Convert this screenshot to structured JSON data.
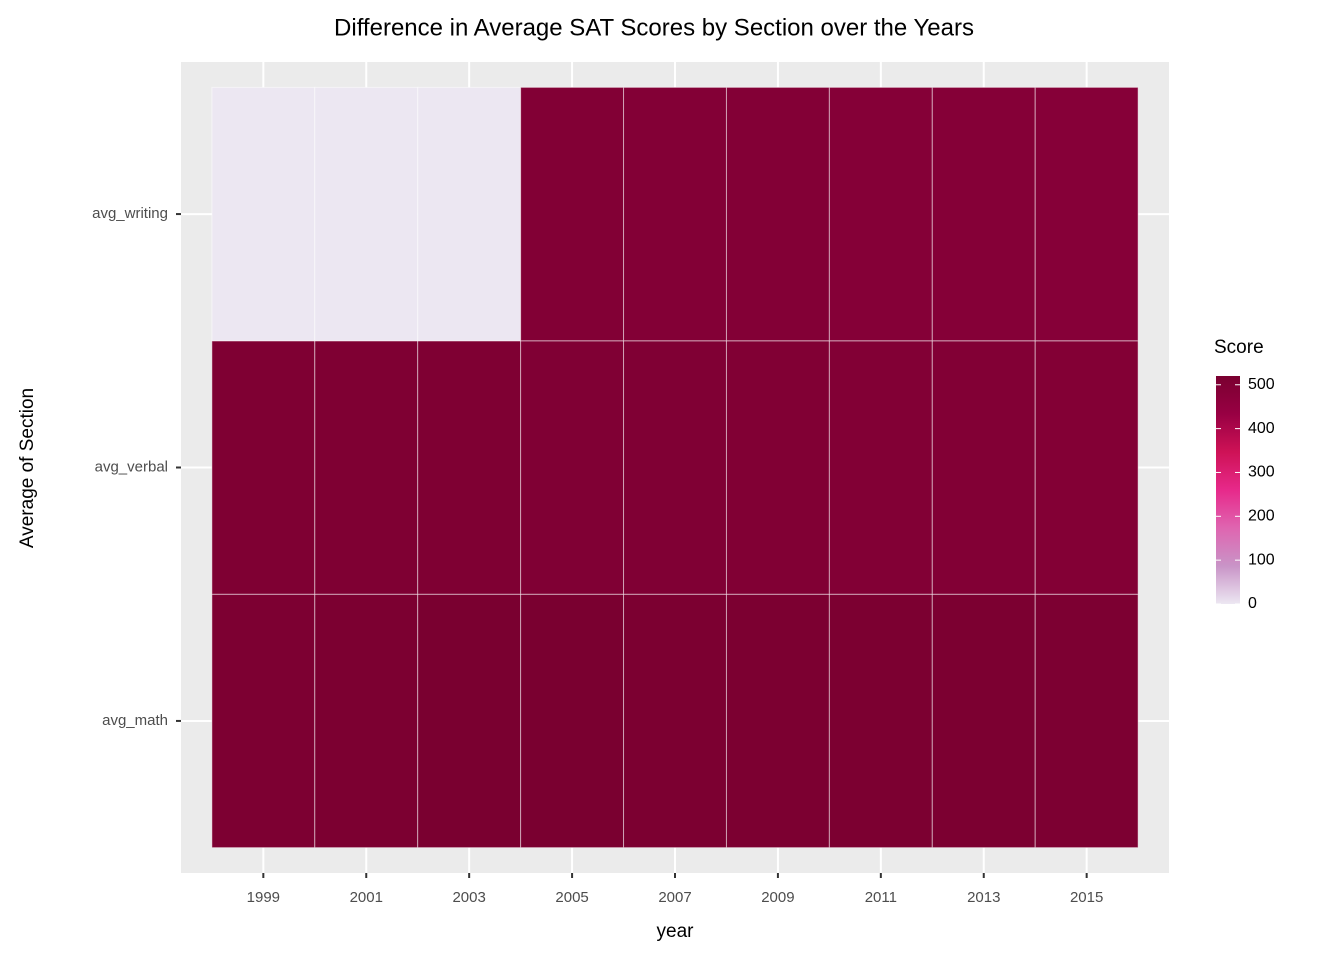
{
  "chart_data": {
    "type": "heatmap",
    "title": "Difference in Average SAT Scores by Section over the Years",
    "x_label": "year",
    "y_label": "Average of Section",
    "x": [
      "1999",
      "2001",
      "2003",
      "2005",
      "2007",
      "2009",
      "2011",
      "2013",
      "2015"
    ],
    "y": [
      "avg_math",
      "avg_verbal",
      "avg_writing"
    ],
    "values": [
      [
        511,
        514,
        519,
        520,
        515,
        515,
        514,
        514,
        511
      ],
      [
        505,
        506,
        507,
        503,
        502,
        501,
        497,
        496,
        495
      ],
      [
        0,
        0,
        0,
        497,
        494,
        493,
        489,
        488,
        484
      ]
    ],
    "legend_title": "Score",
    "colors": [
      "#ece7f2",
      "#c994c7",
      "#df65b0",
      "#e7298a",
      "#ce1256",
      "#980043",
      "#7a0030"
    ],
    "clim": [
      0,
      520
    ],
    "cticks": [
      0,
      100,
      200,
      300,
      400,
      500
    ],
    "grid": true
  }
}
